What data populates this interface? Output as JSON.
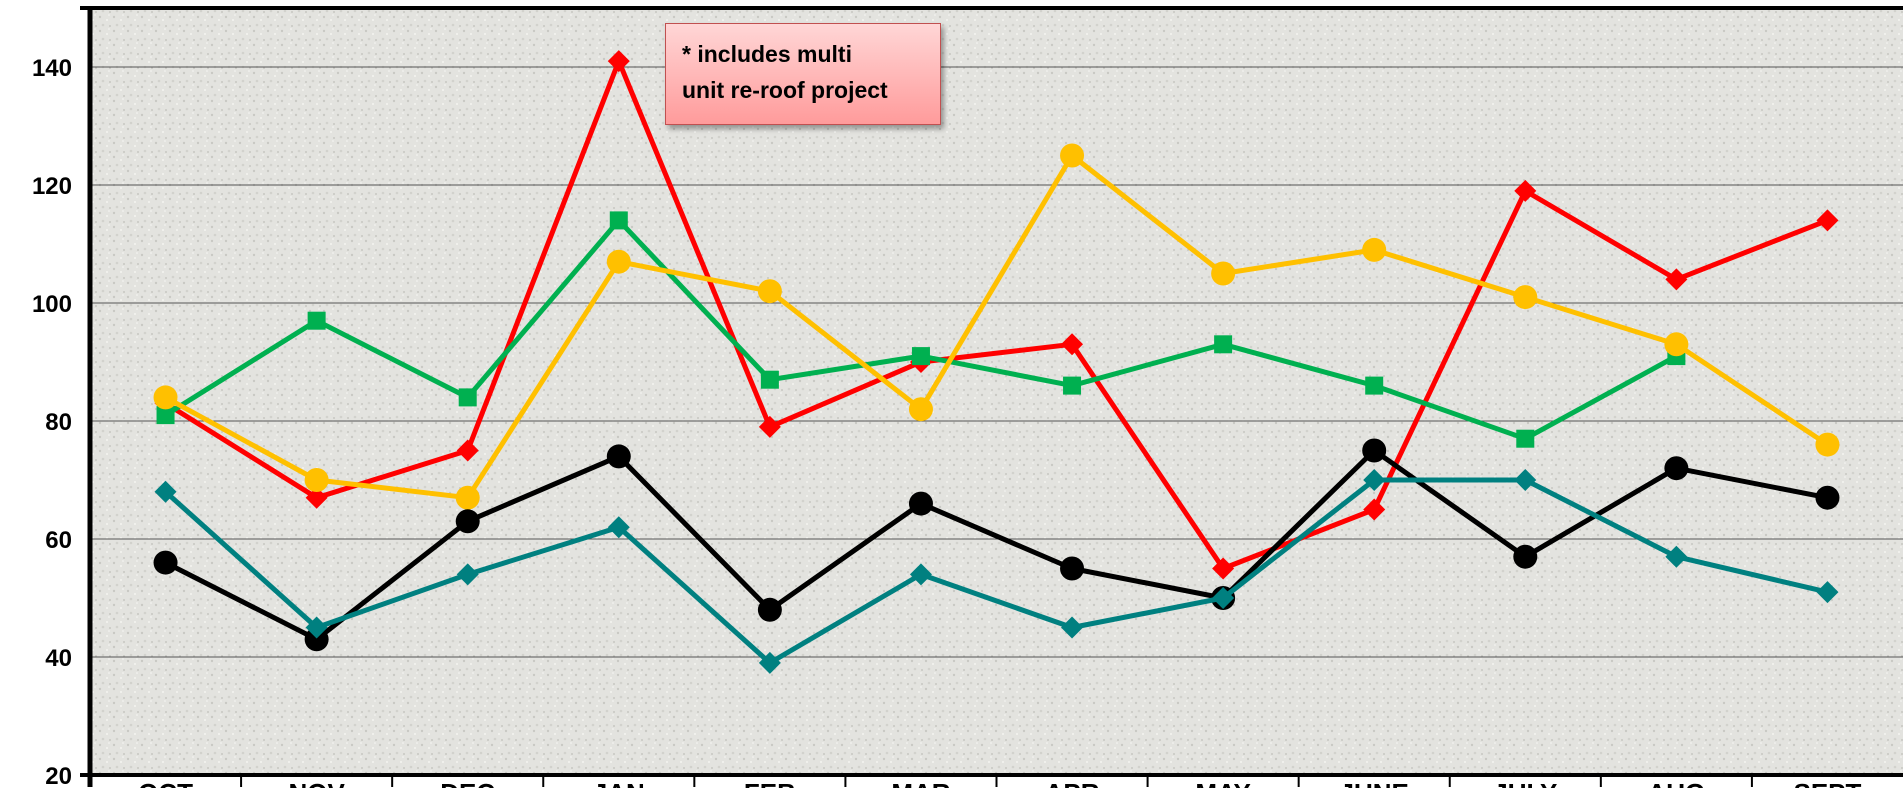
{
  "chart_data": {
    "type": "line",
    "categories": [
      "OCT",
      "NOV",
      "DEC",
      "JAN",
      "FEB",
      "MAR",
      "APR",
      "MAY",
      "JUNE",
      "JULY",
      "AUG",
      "SEPT"
    ],
    "ylim": [
      20,
      150
    ],
    "yticks": [
      20,
      40,
      60,
      80,
      100,
      120,
      140
    ],
    "grid": true,
    "legend": "none",
    "series": [
      {
        "color": "#ff0000",
        "marker": "diamond",
        "values": [
          83,
          67,
          75,
          141,
          79,
          90,
          93,
          55,
          65,
          119,
          104,
          114
        ]
      },
      {
        "color": "#00b050",
        "marker": "square",
        "values": [
          81,
          97,
          84,
          114,
          87,
          91,
          86,
          93,
          86,
          77,
          91,
          null
        ]
      },
      {
        "color": "#ffc000",
        "marker": "circle",
        "values": [
          84,
          70,
          67,
          107,
          102,
          82,
          125,
          105,
          109,
          101,
          93,
          76
        ]
      },
      {
        "color": "#000000",
        "marker": "circle",
        "values": [
          56,
          43,
          63,
          74,
          48,
          66,
          55,
          50,
          75,
          57,
          72,
          67
        ]
      },
      {
        "color": "#008080",
        "marker": "diamond",
        "values": [
          68,
          45,
          54,
          62,
          39,
          54,
          45,
          50,
          70,
          70,
          57,
          51
        ]
      }
    ],
    "annotation": {
      "lines": [
        "* includes multi",
        "unit re-roof project"
      ]
    }
  }
}
